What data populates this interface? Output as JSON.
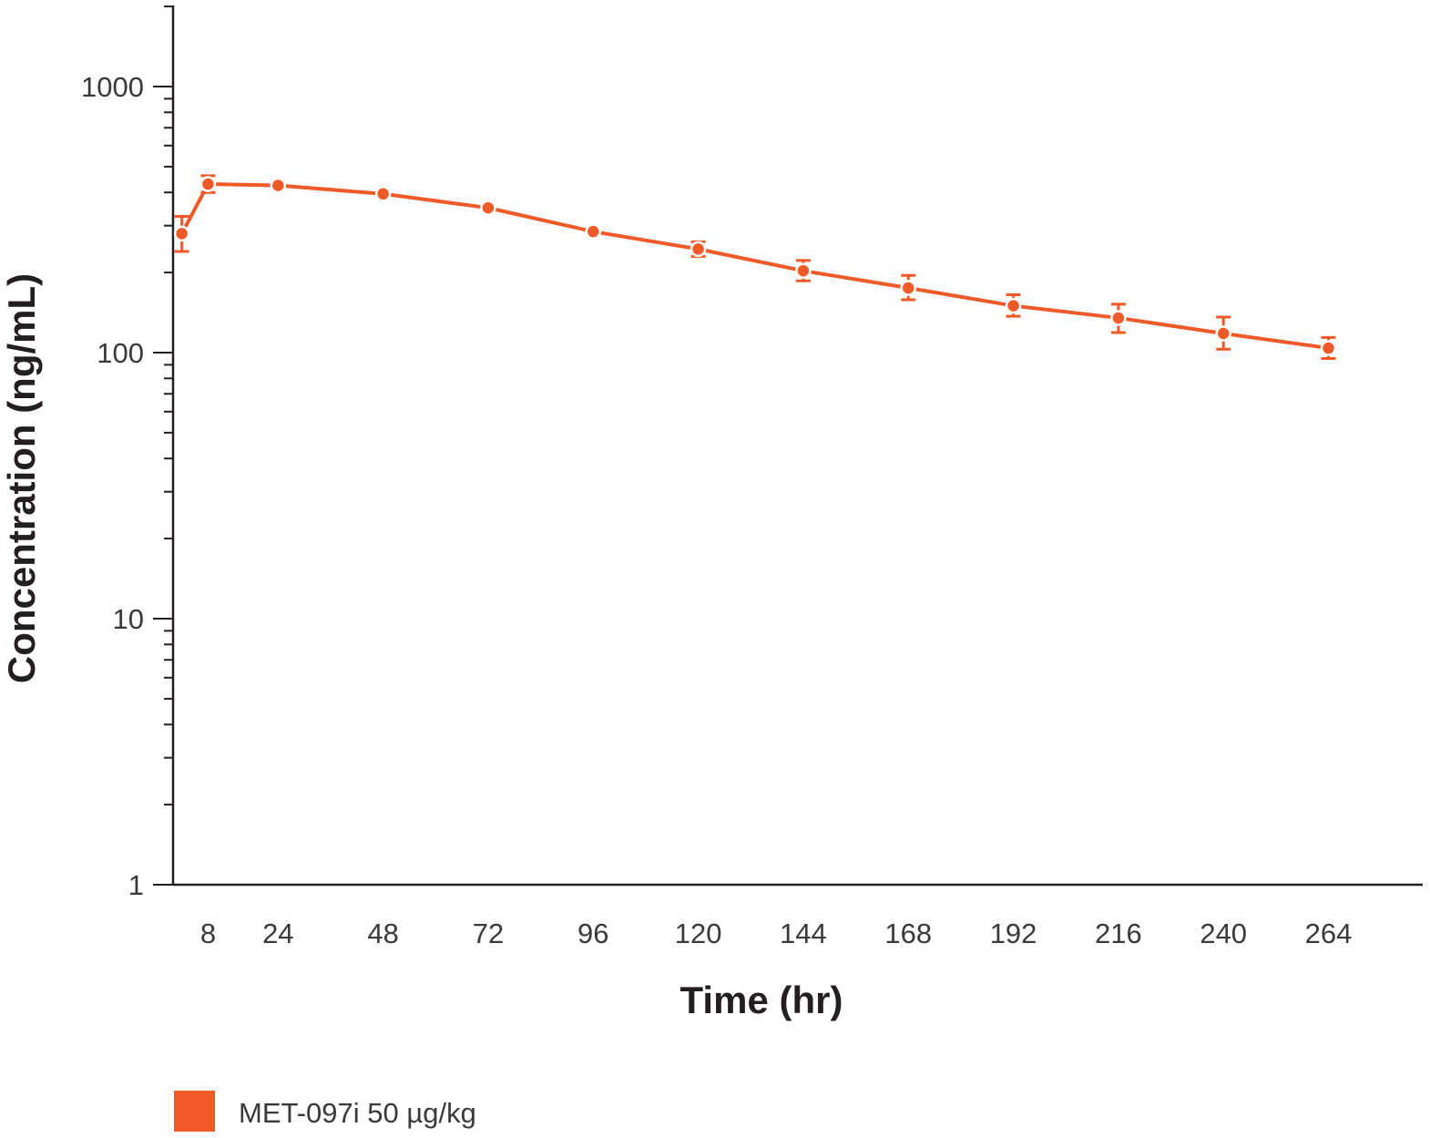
{
  "chart_data": {
    "type": "line",
    "xlabel": "Time (hr)",
    "ylabel": "Concentration (ng/mL)",
    "y_scale": "log",
    "ylim": [
      1,
      2000
    ],
    "xlim": [
      0,
      285
    ],
    "x_ticks": [
      8,
      24,
      48,
      72,
      96,
      120,
      144,
      168,
      192,
      216,
      240,
      264
    ],
    "y_ticks": [
      1,
      10,
      100,
      1000
    ],
    "y_tick_labels": [
      "1",
      "10",
      "100",
      "1000"
    ],
    "grid": false,
    "legend_position": "bottom-left",
    "series": [
      {
        "name": "MET-097i 50 µg/kg",
        "color": "#ef5a28",
        "x": [
          2,
          8,
          24,
          48,
          72,
          96,
          120,
          144,
          168,
          192,
          216,
          240,
          264
        ],
        "y": [
          280,
          430,
          425,
          395,
          350,
          285,
          245,
          203,
          175,
          150,
          135,
          118,
          104
        ],
        "err_low": [
          40,
          30,
          0,
          0,
          0,
          0,
          15,
          17,
          17,
          13,
          16,
          15,
          9
        ],
        "err_high": [
          45,
          32,
          0,
          0,
          0,
          0,
          16,
          19,
          20,
          15,
          17,
          18,
          10
        ]
      }
    ]
  }
}
